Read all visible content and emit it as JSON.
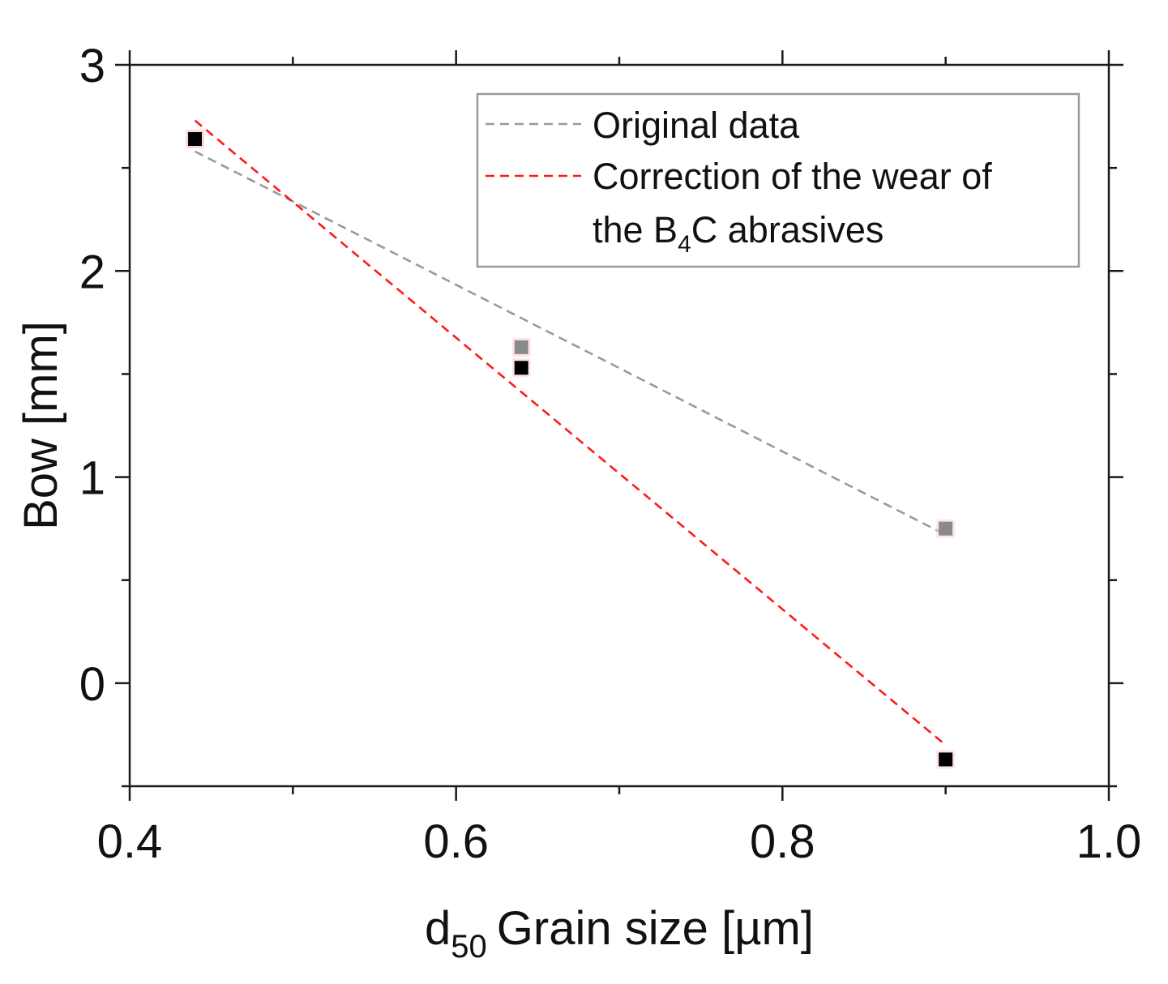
{
  "chart_data": {
    "type": "scatter",
    "title": "",
    "xlabel": "Grain size [µm]",
    "xlabel_prefix": "d",
    "xlabel_subscript": "50",
    "ylabel": "Bow [mm]",
    "xlim": [
      0.4,
      1.0
    ],
    "ylim": [
      -0.5,
      3.0
    ],
    "x_ticks": [
      0.4,
      0.6,
      0.8,
      1.0
    ],
    "x_tick_labels": [
      "0.4",
      "0.6",
      "0.8",
      "1.0"
    ],
    "x_minor_ticks": [
      0.5,
      0.7,
      0.9
    ],
    "y_ticks": [
      0,
      1,
      2,
      3
    ],
    "y_tick_labels": [
      "0",
      "1",
      "2",
      "3"
    ],
    "y_minor_ticks": [
      -0.5,
      0.5,
      1.5,
      2.5
    ],
    "legend_position": "top-right",
    "series": [
      {
        "name": "Original data",
        "marker_color": "#8a8a8a",
        "line_color": "#9a9a9a",
        "line_style": "dashed",
        "points": [
          {
            "x": 0.44,
            "y": 2.64
          },
          {
            "x": 0.64,
            "y": 1.63
          },
          {
            "x": 0.9,
            "y": 0.75
          }
        ],
        "fit": [
          {
            "x": 0.44,
            "y": 2.58
          },
          {
            "x": 0.9,
            "y": 0.72
          }
        ]
      },
      {
        "name": "Correction of the wear of the B4C abrasives",
        "marker_color": "#000000",
        "line_color": "#ff1a1a",
        "line_style": "dashed",
        "points": [
          {
            "x": 0.44,
            "y": 2.64
          },
          {
            "x": 0.64,
            "y": 1.53
          },
          {
            "x": 0.9,
            "y": -0.37
          }
        ],
        "fit": [
          {
            "x": 0.44,
            "y": 2.73
          },
          {
            "x": 0.9,
            "y": -0.3
          }
        ]
      }
    ]
  },
  "legend": {
    "items": [
      {
        "series_index": 0,
        "lines": [
          "Original data"
        ]
      },
      {
        "series_index": 1,
        "line1": "Correction of the wear of",
        "line2_before": "the B",
        "line2_sub": "4",
        "line2_after": "C abrasives"
      }
    ]
  },
  "colors": {
    "axis": "#1a1a1a",
    "legend_border": "#9a9a9a",
    "background": "#ffffff"
  }
}
